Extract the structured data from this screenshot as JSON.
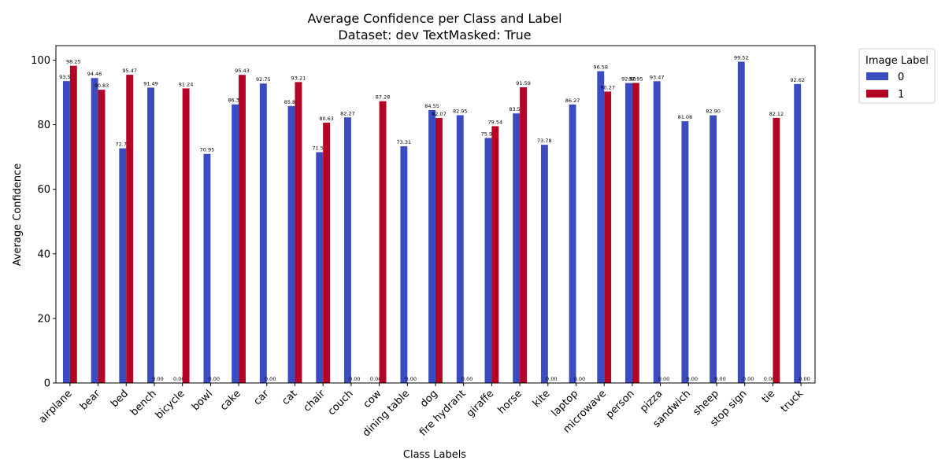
{
  "chart_data": {
    "type": "bar",
    "title": "Average Confidence per Class and Label",
    "subtitle": "Dataset: dev TextMasked: True",
    "xlabel": "Class Labels",
    "ylabel": "Average Confidence",
    "ylim": [
      0,
      104.5
    ],
    "yticks": [
      0,
      20,
      40,
      60,
      80,
      100
    ],
    "grid": false,
    "legend": {
      "title": "Image Label",
      "placement": "outside-top-right"
    },
    "categories": [
      "airplane",
      "bear",
      "bed",
      "bench",
      "bicycle",
      "bowl",
      "cake",
      "car",
      "cat",
      "chair",
      "couch",
      "cow",
      "dining table",
      "dog",
      "fire hydrant",
      "giraffe",
      "horse",
      "kite",
      "laptop",
      "microwave",
      "person",
      "pizza",
      "sandwich",
      "sheep",
      "stop sign",
      "tie",
      "truck"
    ],
    "series": [
      {
        "name": "0",
        "color": "#3b4cc0",
        "values": [
          93.5,
          94.46,
          72.7,
          91.49,
          0.0,
          70.95,
          86.3,
          92.75,
          85.8,
          71.5,
          82.27,
          0.0,
          73.31,
          84.55,
          82.95,
          75.9,
          83.5,
          73.78,
          86.27,
          96.58,
          92.9,
          93.47,
          81.08,
          82.9,
          99.52,
          0.0,
          92.62
        ],
        "labels": [
          "93.50",
          "94.46",
          "72.70",
          "91.49",
          "0.00",
          "70.95",
          "86.30",
          "92.75",
          "85.80",
          "71.50",
          "82.27",
          "0.00",
          "73.31",
          "84.55",
          "82.95",
          "75.90",
          "83.50",
          "73.78",
          "86.27",
          "96.58",
          "92.90",
          "93.47",
          "81.08",
          "82.90",
          "99.52",
          "0.00",
          "92.62"
        ]
      },
      {
        "name": "1",
        "color": "#b40426",
        "values": [
          98.25,
          90.83,
          95.47,
          0.0,
          91.24,
          0.0,
          95.43,
          0.0,
          93.21,
          80.63,
          0.0,
          87.28,
          0.0,
          82.07,
          0.0,
          79.54,
          91.59,
          0.0,
          0.0,
          90.27,
          92.95,
          0.0,
          0.0,
          0.0,
          0.0,
          82.12,
          0.0
        ],
        "labels": [
          "98.25",
          "90.83",
          "95.47",
          "0.00",
          "91.24",
          "0.00",
          "95.43",
          "0.00",
          "93.21",
          "80.63",
          "0.00",
          "87.28",
          "0.00",
          "82.07",
          "0.00",
          "79.54",
          "91.59",
          "0.00",
          "0.00",
          "90.27",
          "92.95",
          "0.00",
          "0.00",
          "0.00",
          "0.00",
          "82.12",
          "0.00"
        ]
      }
    ]
  }
}
